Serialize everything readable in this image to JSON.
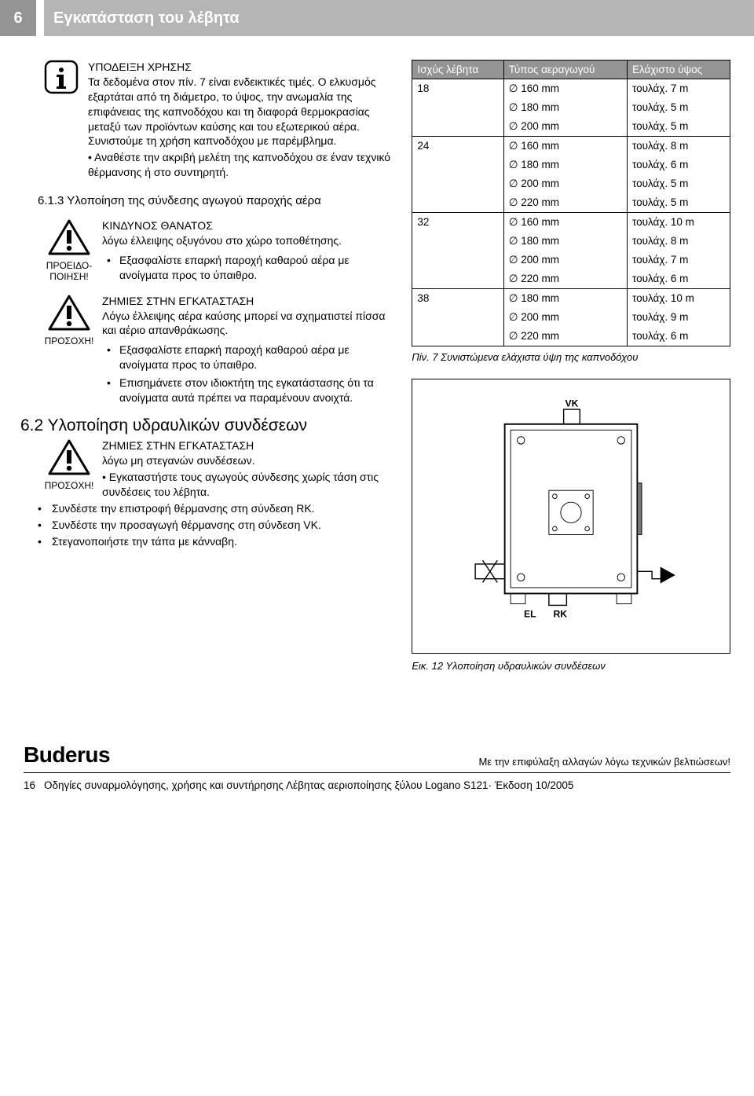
{
  "header": {
    "page_number": "6",
    "title": "Εγκατάσταση του λέβητα"
  },
  "usage_note": {
    "title": "ΥΠΟΔΕΙΞΗ ΧΡΗΣΗΣ",
    "body": "Τα δεδομένα στον πίν. 7 είναι ενδεικτικές τιμές. Ο ελκυσμός εξαρτάται από τη διάμετρο, το ύψος, την ανωμαλία της επιφάνειας της καπνοδόχου και τη διαφορά θερμοκρασίας μεταξύ των προϊόντων καύσης και του εξωτερικού αέρα. Συνιστούμε τη χρήση καπνοδόχου με παρέμβλημα.",
    "bullet": "Αναθέστε την ακριβή μελέτη της καπνοδόχου σε έναν τεχνικό θέρμανσης ή στο συντηρητή."
  },
  "subsection_613": "6.1.3 Υλοποίηση της σύνδεσης αγωγού παροχής αέρα",
  "danger": {
    "label": "ΠΡΟΕΙΔΟ-\nΠΟΙΗΣΗ!",
    "title": "ΚΙΝΔΥΝΟΣ ΘΑΝΑΤΟΣ",
    "body": "λόγω έλλειψης οξυγόνου στο χώρο τοποθέτησης.",
    "bullet": "Εξασφαλίστε επαρκή παροχή καθαρού αέρα με ανοίγματα προς το ύπαιθρο."
  },
  "caution1": {
    "label": "ΠΡΟΣΟΧΗ!",
    "title": "ΖΗΜΙΕΣ ΣΤΗΝ ΕΓΚΑΤΑΣΤΑΣΗ",
    "body": "Λόγω έλλειψης αέρα καύσης μπορεί να σχηματιστεί πίσσα και αέριο απανθράκωσης.",
    "bullets": [
      "Εξασφαλίστε επαρκή παροχή καθαρού αέρα με ανοίγματα προς το ύπαιθρο.",
      "Επισημάνετε στον ιδιοκτήτη της εγκατάστασης ότι τα ανοίγματα αυτά πρέπει να παραμένουν ανοιχτά."
    ]
  },
  "section_62": "6.2 Υλοποίηση υδραυλικών συνδέσεων",
  "caution2": {
    "label": "ΠΡΟΣΟΧΗ!",
    "title": "ΖΗΜΙΕΣ ΣΤΗΝ ΕΓΚΑΤΑΣΤΑΣΗ",
    "body": "λόγω μη στεγανών συνδέσεων.",
    "bullet": "Εγκαταστήστε τους αγωγούς σύνδεσης χωρίς τάση στις συνδέσεις του λέβητα."
  },
  "main_bullets": [
    "Συνδέστε την επιστροφή θέρμανσης στη σύνδεση RK.",
    "Συνδέστε την προσαγωγή θέρμανσης στη σύνδεση VK.",
    "Στεγανοποιήστε την τάπα με κάνναβη."
  ],
  "table": {
    "headers": [
      "Ισχύς λέβητα",
      "Τύπος αεραγωγού",
      "Ελάχιστο ύψος"
    ],
    "groups": [
      {
        "power": "18",
        "rows": [
          [
            "160 mm",
            "7 m"
          ],
          [
            "180 mm",
            "5 m"
          ],
          [
            "200 mm",
            "5 m"
          ]
        ]
      },
      {
        "power": "24",
        "rows": [
          [
            "160 mm",
            "8 m"
          ],
          [
            "180 mm",
            "6 m"
          ],
          [
            "200 mm",
            "5 m"
          ],
          [
            "220 mm",
            "5 m"
          ]
        ]
      },
      {
        "power": "32",
        "rows": [
          [
            "160 mm",
            "10 m"
          ],
          [
            "180 mm",
            "8 m"
          ],
          [
            "200 mm",
            "7 m"
          ],
          [
            "220 mm",
            "6 m"
          ]
        ]
      },
      {
        "power": "38",
        "rows": [
          [
            "180 mm",
            "10 m"
          ],
          [
            "200 mm",
            "9 m"
          ],
          [
            "220 mm",
            "6 m"
          ]
        ]
      }
    ],
    "caption": "Πίν. 7  Συνιστώμενα ελάχιστα ύψη της καπνοδόχου",
    "prefix_height": "τουλάχ. "
  },
  "figure": {
    "labels": {
      "vk": "VK",
      "el": "EL",
      "rk": "RK"
    },
    "caption": "Εικ. 12 Υλοποίηση υδραυλικών συνδέσεων"
  },
  "footer": {
    "brand": "Buderus",
    "disclaimer": "Με την επιφύλαξη αλλαγών λόγω τεχνικών βελτιώσεων!",
    "page": "16",
    "doc": "Οδηγίες συναρμολόγησης, χρήσης και συντήρησης Λέβητας αεριοποίησης ξύλου Logano S121· Έκδοση 10/2005"
  }
}
